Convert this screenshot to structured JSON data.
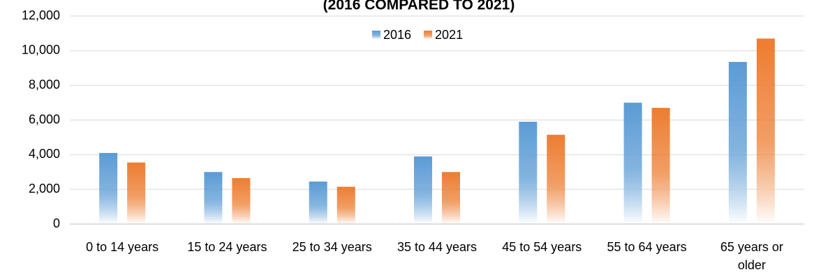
{
  "chart_data": {
    "type": "bar",
    "title": "(2016 COMPARED TO 2021)",
    "categories": [
      "0 to 14 years",
      "15 to 24 years",
      "25 to 34 years",
      "35 to 44 years",
      "45 to 54 years",
      "55 to 64 years",
      "65 years or older"
    ],
    "series": [
      {
        "name": "2016",
        "color": "#5b9bd5",
        "values": [
          4100,
          3000,
          2450,
          3900,
          5900,
          7000,
          9350
        ]
      },
      {
        "name": "2021",
        "color": "#ed7d31",
        "values": [
          3550,
          2650,
          2150,
          3000,
          5150,
          6700,
          10700
        ]
      }
    ],
    "ylim": [
      0,
      12000
    ],
    "yticks": [
      {
        "value": 0,
        "label": "0"
      },
      {
        "value": 2000,
        "label": "2,000"
      },
      {
        "value": 4000,
        "label": "4,000"
      },
      {
        "value": 6000,
        "label": "6,000"
      },
      {
        "value": 8000,
        "label": "8,000"
      },
      {
        "value": 10000,
        "label": "10,000"
      },
      {
        "value": 12000,
        "label": "12,000"
      }
    ],
    "grid": true,
    "legend": "top"
  }
}
